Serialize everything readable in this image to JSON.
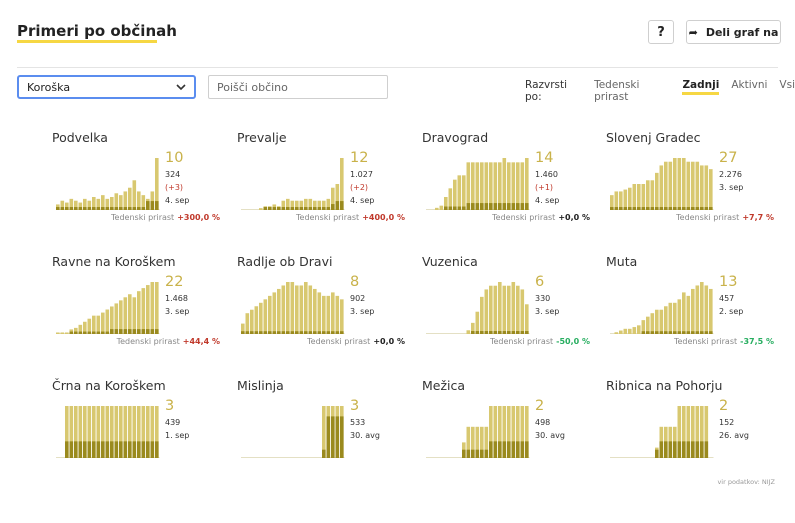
{
  "header": {
    "title": "Primeri po občinah",
    "help_label": "?",
    "share_label": "Deli graf na"
  },
  "filters": {
    "region_value": "Koroška",
    "search_placeholder": "Poišči občino",
    "sort_label": "Razvrsti po:",
    "sort_options": [
      "Tedenski prirast",
      "Zadnji",
      "Aktivni",
      "Vsi"
    ],
    "sort_active": "Zadnji"
  },
  "weekly_label": "Tedenski prirast",
  "colors": {
    "accent": "#f6d743",
    "bar_light": "#d8c870",
    "bar_dark": "#9a8a1e",
    "up": "#c0392b",
    "down": "#27ae60"
  },
  "municipalities": [
    {
      "name": "Podvelka",
      "value": "10",
      "total": "324",
      "change": "(+3)",
      "date": "4. sep",
      "weekly": "+300,0 %",
      "trend": "up",
      "bars": [
        3,
        5,
        4,
        6,
        5,
        4,
        6,
        5,
        7,
        6,
        8,
        6,
        7,
        9,
        8,
        10,
        12,
        16,
        10,
        8,
        6,
        10,
        28
      ],
      "recent": [
        1,
        1,
        1,
        1,
        1,
        1,
        1,
        1,
        1,
        1,
        1,
        1,
        1,
        1,
        1,
        1,
        1,
        1,
        1,
        1,
        3,
        3,
        3
      ]
    },
    {
      "name": "Prevalje",
      "value": "12",
      "total": "1.027",
      "change": "(+2)",
      "date": "4. sep",
      "weekly": "+400,0 %",
      "trend": "up",
      "bars": [
        0,
        0,
        0,
        0,
        1,
        2,
        2,
        3,
        2,
        5,
        6,
        5,
        5,
        5,
        6,
        6,
        5,
        5,
        5,
        6,
        12,
        14,
        28
      ],
      "recent": [
        0,
        0,
        0,
        0,
        0,
        1,
        1,
        1,
        1,
        1,
        1,
        1,
        1,
        1,
        1,
        1,
        1,
        1,
        1,
        1,
        2,
        3,
        3
      ]
    },
    {
      "name": "Dravograd",
      "value": "14",
      "total": "1.460",
      "change": "(+1)",
      "date": "4. sep",
      "weekly": "+0,0 %",
      "trend": "neutral",
      "bars": [
        0,
        0,
        1,
        2,
        6,
        10,
        14,
        16,
        16,
        22,
        22,
        22,
        22,
        22,
        22,
        22,
        22,
        24,
        22,
        22,
        22,
        22,
        24
      ],
      "recent": [
        0,
        0,
        0,
        0,
        1,
        1,
        1,
        1,
        1,
        2,
        2,
        2,
        2,
        2,
        2,
        2,
        2,
        2,
        2,
        2,
        2,
        2,
        2
      ]
    },
    {
      "name": "Slovenj Gradec",
      "value": "27",
      "total": "2.276",
      "change": "",
      "date": "3. sep",
      "weekly": "+7,7 %",
      "trend": "up",
      "bars": [
        8,
        10,
        10,
        11,
        12,
        14,
        14,
        14,
        16,
        16,
        20,
        24,
        26,
        26,
        28,
        28,
        28,
        26,
        26,
        26,
        24,
        24,
        22
      ],
      "recent": [
        1,
        1,
        1,
        1,
        1,
        1,
        1,
        1,
        1,
        1,
        1,
        1,
        1,
        1,
        1,
        1,
        1,
        1,
        1,
        1,
        1,
        1,
        1
      ]
    },
    {
      "name": "Ravne na Koroškem",
      "value": "22",
      "total": "1.468",
      "change": "",
      "date": "3. sep",
      "weekly": "+44,4 %",
      "trend": "up",
      "bars": [
        1,
        1,
        1,
        3,
        4,
        6,
        8,
        10,
        12,
        12,
        14,
        16,
        18,
        20,
        22,
        24,
        26,
        24,
        28,
        30,
        32,
        34,
        34
      ],
      "recent": [
        0,
        0,
        0,
        1,
        1,
        1,
        1,
        1,
        1,
        1,
        1,
        1,
        2,
        2,
        2,
        2,
        2,
        2,
        2,
        2,
        2,
        2,
        2
      ]
    },
    {
      "name": "Radlje ob Dravi",
      "value": "8",
      "total": "902",
      "change": "",
      "date": "3. sep",
      "weekly": "+0,0 %",
      "trend": "neutral",
      "bars": [
        6,
        12,
        14,
        16,
        18,
        20,
        22,
        24,
        26,
        28,
        30,
        30,
        28,
        28,
        30,
        28,
        26,
        24,
        22,
        22,
        24,
        22,
        20
      ],
      "recent": [
        1,
        1,
        1,
        1,
        1,
        1,
        1,
        1,
        1,
        1,
        1,
        1,
        1,
        1,
        1,
        1,
        1,
        1,
        1,
        1,
        1,
        1,
        1
      ]
    },
    {
      "name": "Vuzenica",
      "value": "6",
      "total": "330",
      "change": "",
      "date": "3. sep",
      "weekly": "-50,0 %",
      "trend": "down",
      "bars": [
        0,
        0,
        0,
        0,
        0,
        0,
        0,
        0,
        0,
        2,
        6,
        12,
        20,
        24,
        26,
        26,
        28,
        26,
        26,
        28,
        26,
        24,
        16
      ],
      "recent": [
        0,
        0,
        0,
        0,
        0,
        0,
        0,
        0,
        0,
        0,
        1,
        1,
        1,
        1,
        1,
        1,
        1,
        1,
        1,
        1,
        1,
        1,
        1
      ]
    },
    {
      "name": "Muta",
      "value": "13",
      "total": "457",
      "change": "",
      "date": "2. sep",
      "weekly": "-37,5 %",
      "trend": "down",
      "bars": [
        0,
        1,
        2,
        3,
        3,
        4,
        5,
        8,
        10,
        12,
        14,
        14,
        16,
        18,
        18,
        20,
        24,
        22,
        26,
        28,
        30,
        28,
        26
      ],
      "recent": [
        0,
        0,
        0,
        0,
        0,
        0,
        0,
        1,
        1,
        1,
        1,
        1,
        1,
        1,
        1,
        1,
        1,
        1,
        1,
        1,
        1,
        1,
        1
      ]
    },
    {
      "name": "Črna na Koroškem",
      "value": "3",
      "total": "439",
      "change": "",
      "date": "1. sep",
      "weekly": "",
      "trend": "neutral",
      "bars": [
        0,
        0,
        10,
        10,
        10,
        10,
        10,
        10,
        10,
        10,
        10,
        10,
        10,
        10,
        10,
        10,
        10,
        10,
        10,
        10,
        10,
        10,
        10
      ],
      "recent": [
        0,
        0,
        2,
        2,
        2,
        2,
        2,
        2,
        2,
        2,
        2,
        2,
        2,
        2,
        2,
        2,
        2,
        2,
        2,
        2,
        2,
        2,
        2
      ]
    },
    {
      "name": "Mislinja",
      "value": "3",
      "total": "533",
      "change": "",
      "date": "30. avg",
      "weekly": "",
      "trend": "neutral",
      "bars": [
        0,
        0,
        0,
        0,
        0,
        0,
        0,
        0,
        0,
        0,
        0,
        0,
        0,
        0,
        0,
        0,
        0,
        0,
        10,
        10,
        10,
        10,
        10
      ],
      "recent": [
        0,
        0,
        0,
        0,
        0,
        0,
        0,
        0,
        0,
        0,
        0,
        0,
        0,
        0,
        0,
        0,
        0,
        0,
        1,
        5,
        5,
        5,
        5
      ]
    },
    {
      "name": "Mežica",
      "value": "2",
      "total": "498",
      "change": "",
      "date": "30. avg",
      "weekly": "",
      "trend": "neutral",
      "bars": [
        0,
        0,
        0,
        0,
        0,
        0,
        0,
        0,
        3,
        6,
        6,
        6,
        6,
        6,
        10,
        10,
        10,
        10,
        10,
        10,
        10,
        10,
        10
      ],
      "recent": [
        0,
        0,
        0,
        0,
        0,
        0,
        0,
        0,
        1,
        1,
        1,
        1,
        1,
        1,
        2,
        2,
        2,
        2,
        2,
        2,
        2,
        2,
        2
      ]
    },
    {
      "name": "Ribnica na Pohorju",
      "value": "2",
      "total": "152",
      "change": "",
      "date": "26. avg",
      "weekly": "",
      "trend": "neutral",
      "bars": [
        0,
        0,
        0,
        0,
        0,
        0,
        0,
        0,
        0,
        0,
        2,
        6,
        6,
        6,
        6,
        10,
        10,
        10,
        10,
        10,
        10,
        10,
        0
      ],
      "recent": [
        0,
        0,
        0,
        0,
        0,
        0,
        0,
        0,
        0,
        0,
        1,
        2,
        2,
        2,
        2,
        2,
        2,
        2,
        2,
        2,
        2,
        2,
        0
      ]
    }
  ],
  "source_note": "vir podatkov: NIJZ"
}
